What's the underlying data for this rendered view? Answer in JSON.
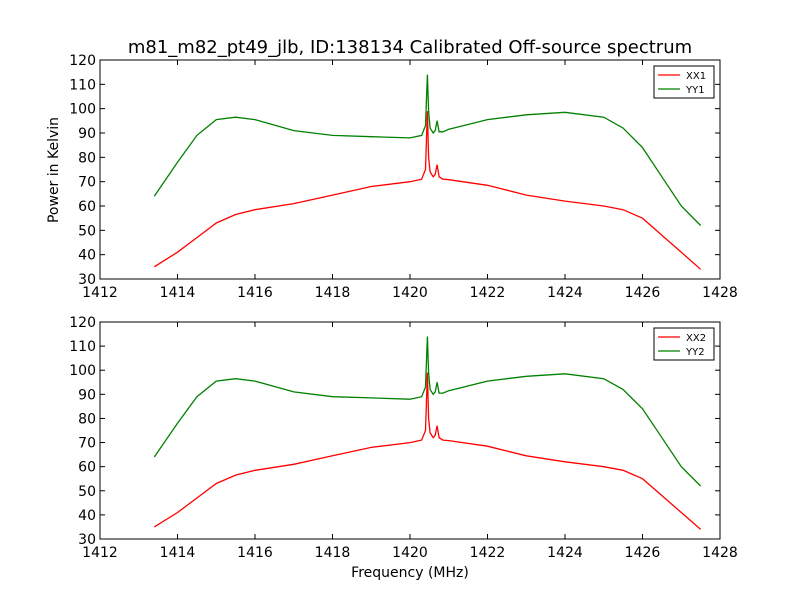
{
  "figure": {
    "title": "m81_m82_pt49_jlb, ID:138134 Calibrated Off-source spectrum",
    "ylabel": "Power in Kelvin",
    "xlabel": "Frequency (MHz)"
  },
  "chart_data": [
    {
      "type": "line",
      "xlim": [
        1412,
        1428
      ],
      "ylim": [
        30,
        120
      ],
      "xticks": [
        1412,
        1414,
        1416,
        1418,
        1420,
        1422,
        1424,
        1426,
        1428
      ],
      "yticks": [
        30,
        40,
        50,
        60,
        70,
        80,
        90,
        100,
        110,
        120
      ],
      "legend_position": "top-right",
      "grid": false,
      "series": [
        {
          "name": "XX1",
          "color": "#ff0000",
          "x": [
            1413.4,
            1414.0,
            1414.5,
            1415.0,
            1415.5,
            1416.0,
            1417.0,
            1418.0,
            1419.0,
            1420.0,
            1420.3,
            1420.4,
            1420.45,
            1420.48,
            1420.52,
            1420.6,
            1420.65,
            1420.7,
            1420.75,
            1420.85,
            1421.0,
            1422.0,
            1423.0,
            1424.0,
            1425.0,
            1425.5,
            1426.0,
            1426.5,
            1427.0,
            1427.5
          ],
          "y": [
            35,
            41,
            47,
            53,
            56.5,
            58.5,
            61,
            64.5,
            68,
            70,
            71,
            75,
            99,
            80,
            74,
            72,
            73,
            77,
            72,
            71,
            70.8,
            68.5,
            64.5,
            62,
            60,
            58.5,
            55,
            48,
            41,
            34
          ]
        },
        {
          "name": "YY1",
          "color": "#008000",
          "x": [
            1413.4,
            1414.0,
            1414.5,
            1415.0,
            1415.5,
            1416.0,
            1417.0,
            1418.0,
            1419.0,
            1420.0,
            1420.3,
            1420.4,
            1420.45,
            1420.48,
            1420.52,
            1420.6,
            1420.65,
            1420.7,
            1420.75,
            1420.85,
            1421.0,
            1422.0,
            1423.0,
            1424.0,
            1425.0,
            1425.5,
            1426.0,
            1426.5,
            1427.0,
            1427.5
          ],
          "y": [
            64,
            78,
            89,
            95.5,
            96.5,
            95.5,
            91,
            89,
            88.5,
            88,
            89,
            93,
            114,
            99,
            92,
            90,
            91,
            95,
            90.5,
            90.5,
            91.5,
            95.5,
            97.5,
            98.5,
            96.5,
            92,
            84,
            72,
            60,
            52
          ]
        }
      ]
    },
    {
      "type": "line",
      "xlim": [
        1412,
        1428
      ],
      "ylim": [
        30,
        120
      ],
      "xticks": [
        1412,
        1414,
        1416,
        1418,
        1420,
        1422,
        1424,
        1426,
        1428
      ],
      "yticks": [
        30,
        40,
        50,
        60,
        70,
        80,
        90,
        100,
        110,
        120
      ],
      "legend_position": "top-right",
      "grid": false,
      "series": [
        {
          "name": "XX2",
          "color": "#ff0000",
          "x": [
            1413.4,
            1414.0,
            1414.5,
            1415.0,
            1415.5,
            1416.0,
            1417.0,
            1418.0,
            1419.0,
            1420.0,
            1420.3,
            1420.4,
            1420.45,
            1420.48,
            1420.52,
            1420.6,
            1420.65,
            1420.7,
            1420.75,
            1420.85,
            1421.0,
            1422.0,
            1423.0,
            1424.0,
            1425.0,
            1425.5,
            1426.0,
            1426.5,
            1427.0,
            1427.5
          ],
          "y": [
            35,
            41,
            47,
            53,
            56.5,
            58.5,
            61,
            64.5,
            68,
            70,
            71,
            75,
            99,
            80,
            74,
            72,
            73,
            77,
            72,
            71,
            70.8,
            68.5,
            64.5,
            62,
            60,
            58.5,
            55,
            48,
            41,
            34
          ]
        },
        {
          "name": "YY2",
          "color": "#008000",
          "x": [
            1413.4,
            1414.0,
            1414.5,
            1415.0,
            1415.5,
            1416.0,
            1417.0,
            1418.0,
            1419.0,
            1420.0,
            1420.3,
            1420.4,
            1420.45,
            1420.48,
            1420.52,
            1420.6,
            1420.65,
            1420.7,
            1420.75,
            1420.85,
            1421.0,
            1422.0,
            1423.0,
            1424.0,
            1425.0,
            1425.5,
            1426.0,
            1426.5,
            1427.0,
            1427.5
          ],
          "y": [
            64,
            78,
            89,
            95.5,
            96.5,
            95.5,
            91,
            89,
            88.5,
            88,
            89,
            93,
            114,
            99,
            92,
            90,
            91,
            95,
            90.5,
            90.5,
            91.5,
            95.5,
            97.5,
            98.5,
            96.5,
            92,
            84,
            72,
            60,
            52
          ]
        }
      ]
    }
  ]
}
